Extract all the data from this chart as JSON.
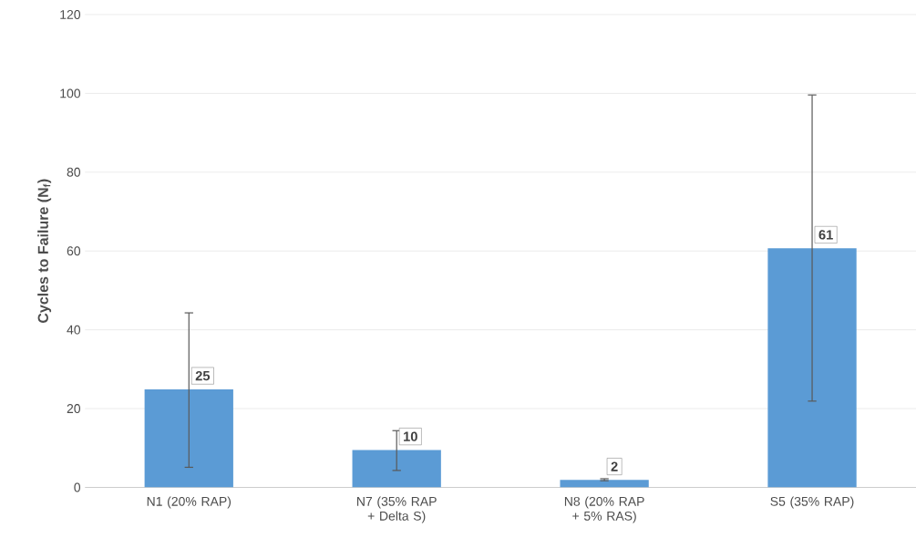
{
  "chart_data": {
    "type": "bar",
    "ylabel": "Cycles to Failure (N$_{f}$)",
    "categories": [
      "N1 (20% RAP)",
      "N7 (35% RAP + Delta S)",
      "N8 (20% RAP + 5% RAS)",
      "S5 (35% RAP)"
    ],
    "values": [
      24.9,
      9.5,
      1.9,
      60.7
    ],
    "value_labels": [
      "25",
      "10",
      "2",
      "61"
    ],
    "errors": [
      [
        5.1,
        44.3
      ],
      [
        4.3,
        14.4
      ],
      [
        1.7,
        2.2
      ],
      [
        21.9,
        99.6
      ]
    ],
    "color": "#5b9bd5",
    "ylim": [
      0,
      120
    ],
    "yticks": [
      0,
      20,
      40,
      60,
      80,
      100,
      120
    ],
    "grid": "y"
  }
}
